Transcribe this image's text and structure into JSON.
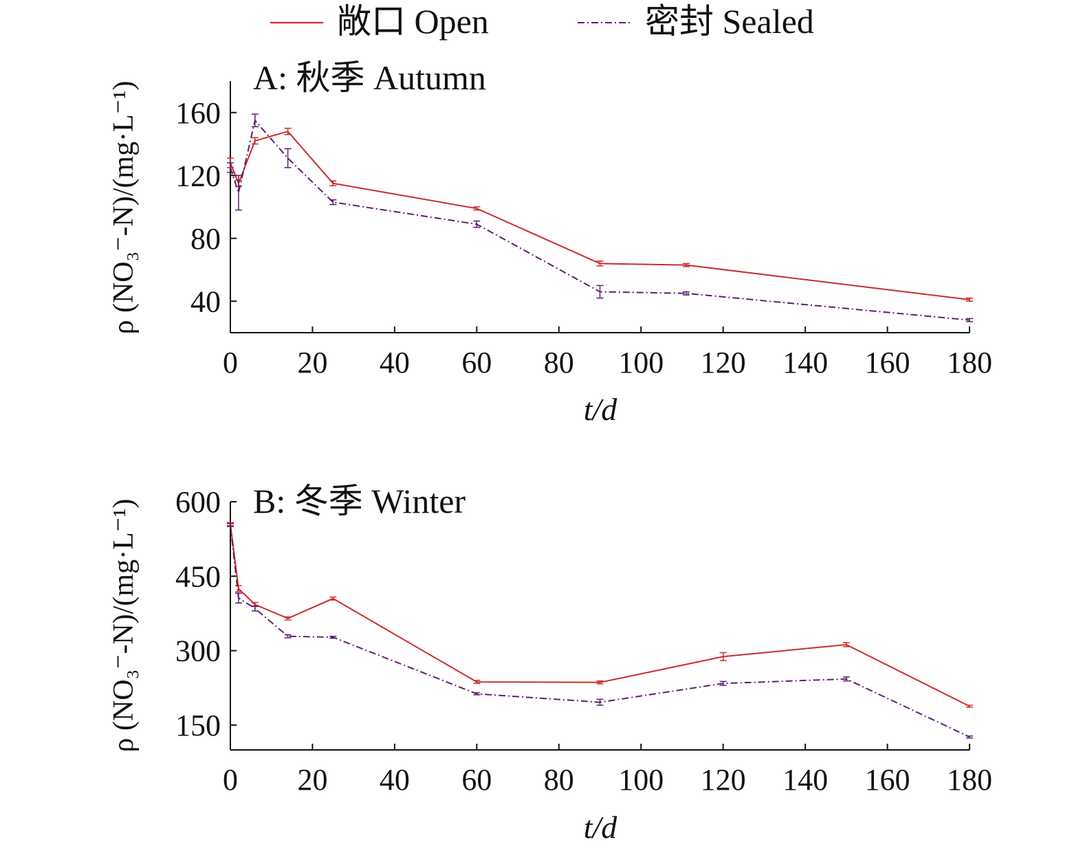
{
  "legend": {
    "open_label": "敞口 Open",
    "sealed_label": "密封 Sealed",
    "open_color": "#cc2a2a",
    "sealed_color": "#5b1f6e"
  },
  "chart_data": [
    {
      "type": "line",
      "panel": "A",
      "title": "A: 秋季 Autumn",
      "xlabel": "t/d",
      "ylabel": "ρ (NO₃⁻-N)/(mg·L⁻¹)",
      "xlim": [
        0,
        180
      ],
      "ylim": [
        20,
        180
      ],
      "xticks": [
        0,
        20,
        40,
        60,
        80,
        100,
        120,
        140,
        160,
        180
      ],
      "yticks": [
        40,
        80,
        120,
        160
      ],
      "grid": false,
      "legend_position": "top",
      "series": [
        {
          "name": "敞口 Open",
          "x": [
            0,
            2,
            6,
            14,
            25,
            60,
            90,
            111,
            180
          ],
          "y": [
            128,
            115,
            142,
            148,
            115,
            99,
            64,
            63,
            41
          ],
          "err": [
            3,
            2,
            2,
            2,
            1.5,
            1,
            1.5,
            1,
            1
          ]
        },
        {
          "name": "密封 Sealed",
          "x": [
            0,
            2,
            6,
            14,
            25,
            60,
            90,
            111,
            180
          ],
          "y": [
            125,
            109,
            155,
            131,
            103,
            89,
            46,
            45,
            28
          ],
          "err": [
            3,
            11,
            4,
            6,
            1.5,
            2,
            4,
            1,
            1
          ]
        }
      ]
    },
    {
      "type": "line",
      "panel": "B",
      "title": "B: 冬季 Winter",
      "xlabel": "t/d",
      "ylabel": "ρ (NO₃⁻-N)/(mg·L⁻¹)",
      "xlim": [
        0,
        180
      ],
      "ylim": [
        100,
        600
      ],
      "xticks": [
        0,
        20,
        40,
        60,
        80,
        100,
        120,
        140,
        160,
        180
      ],
      "yticks": [
        150,
        300,
        450,
        600
      ],
      "grid": false,
      "series": [
        {
          "name": "敞口 Open",
          "x": [
            0,
            2,
            6,
            14,
            25,
            60,
            90,
            120,
            150,
            180
          ],
          "y": [
            555,
            425,
            393,
            365,
            405,
            237,
            236,
            288,
            312,
            188
          ],
          "err": [
            3,
            6,
            4,
            3,
            3,
            3,
            3,
            8,
            4,
            2
          ]
        },
        {
          "name": "密封 Sealed",
          "x": [
            0,
            2,
            6,
            14,
            25,
            60,
            90,
            120,
            150,
            180
          ],
          "y": [
            553,
            406,
            385,
            329,
            327,
            213,
            196,
            234,
            243,
            126
          ],
          "err": [
            3,
            10,
            5,
            3,
            2,
            2,
            6,
            4,
            4,
            2
          ]
        }
      ]
    }
  ]
}
